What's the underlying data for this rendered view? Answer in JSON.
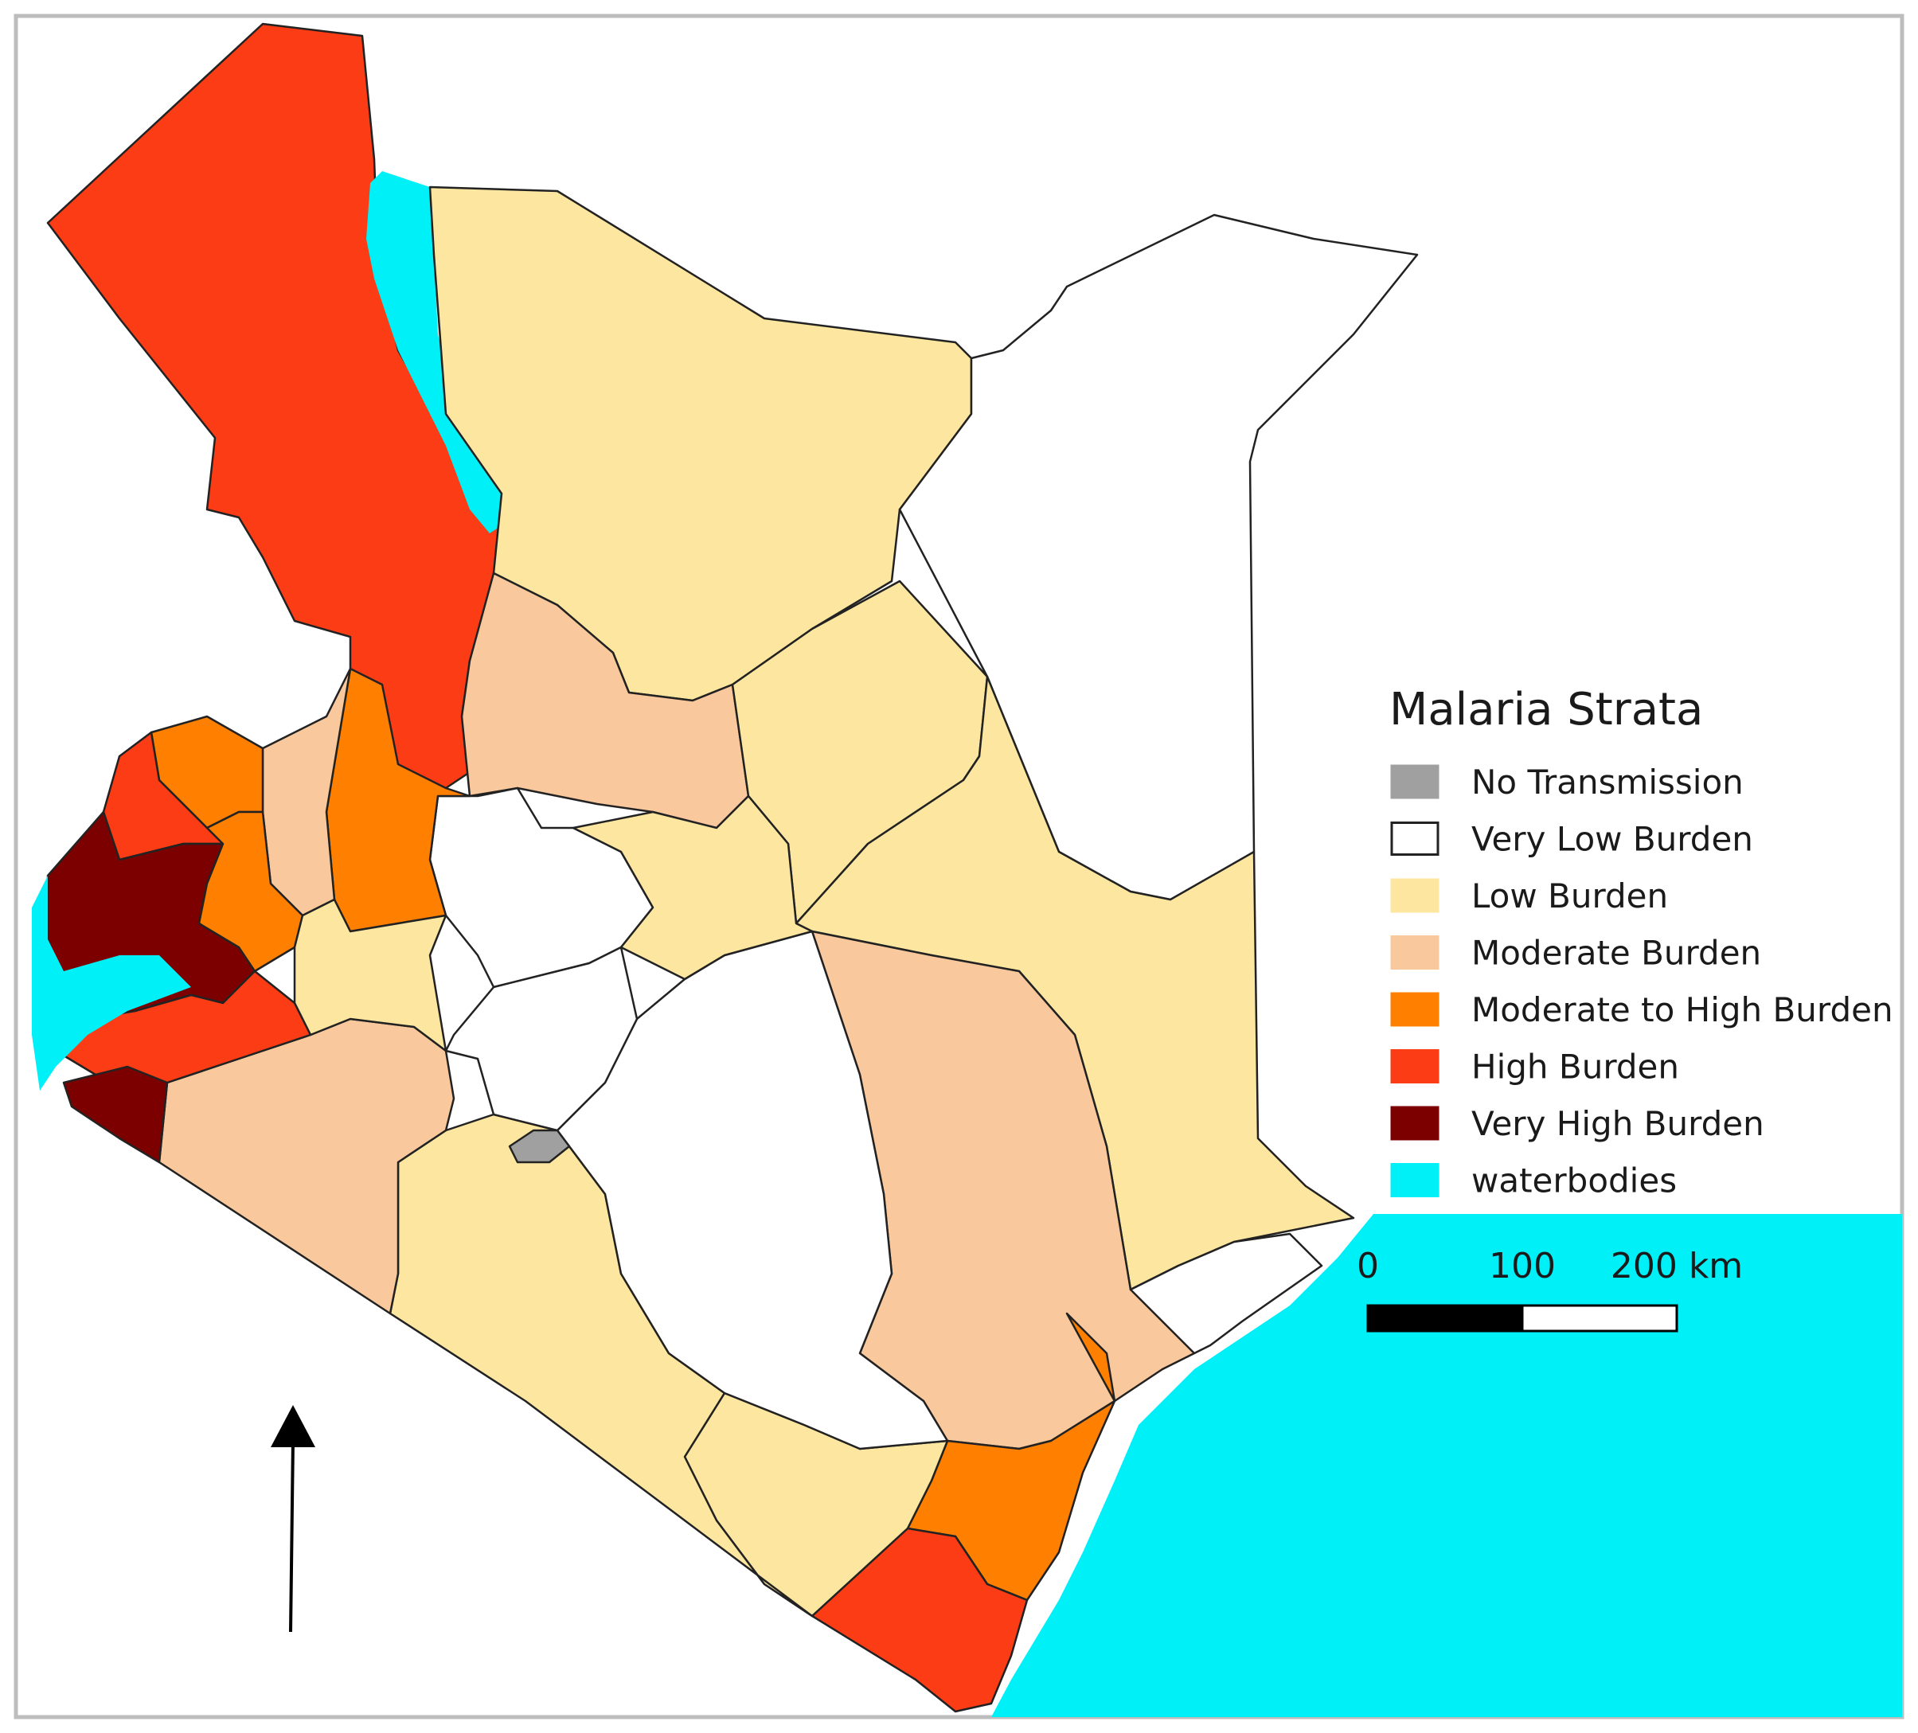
{
  "legend": {
    "title": "Malaria Strata",
    "items": [
      {
        "label": "No Transmission",
        "color": "#a0a0a0"
      },
      {
        "label": "Very Low Burden",
        "color": "#ffffff"
      },
      {
        "label": "Low Burden",
        "color": "#fce6a0"
      },
      {
        "label": "Moderate Burden",
        "color": "#f9c89c"
      },
      {
        "label": "Moderate to High Burden",
        "color": "#ff8000"
      },
      {
        "label": "High Burden",
        "color": "#fc3c14"
      },
      {
        "label": "Very High Burden",
        "color": "#7d0000"
      },
      {
        "label": "waterbodies",
        "color": "#00f0f8"
      }
    ]
  },
  "scale_bar": {
    "labels": [
      "0",
      "100",
      "200 km"
    ]
  },
  "north_arrow": {
    "icon": "north-arrow-icon"
  }
}
